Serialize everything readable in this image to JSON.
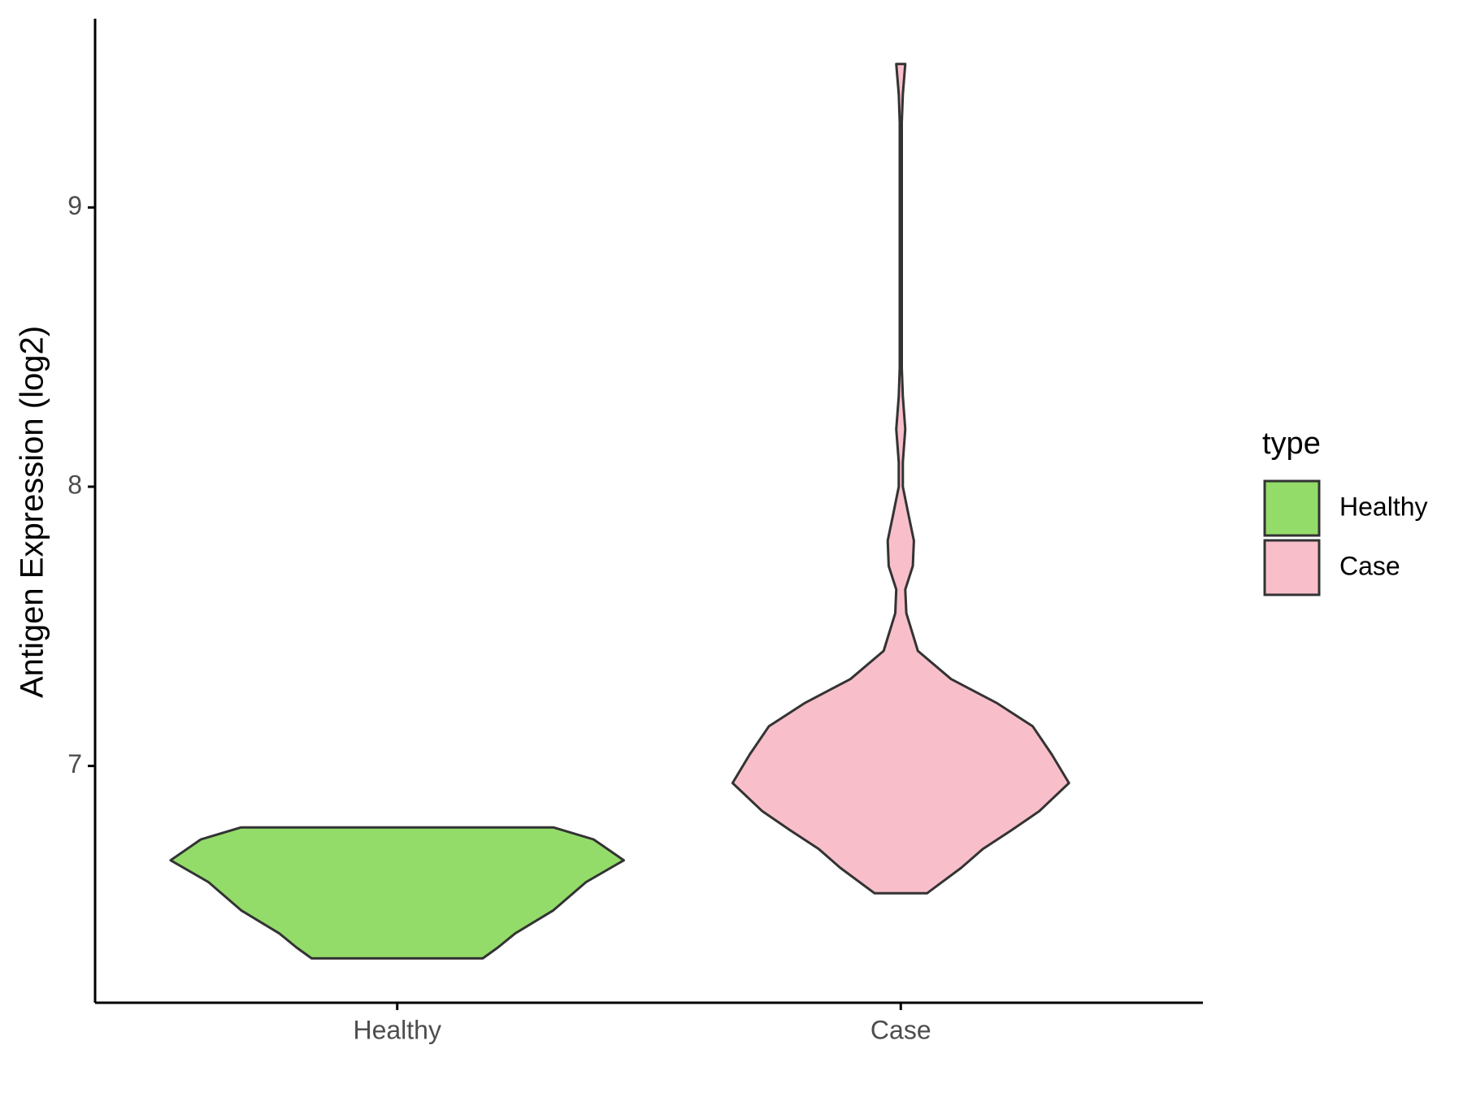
{
  "chart_data": {
    "type": "violin",
    "y_label": "Antigen Expression (log2)",
    "categories": [
      "Healthy",
      "Case"
    ],
    "legend_title": "type",
    "series": [
      {
        "name": "Healthy",
        "color": "#93dc6a",
        "y": [
          6.311,
          6.35,
          6.4,
          6.483,
          6.584,
          6.662,
          6.737,
          6.78
        ],
        "width": [
          0.17,
          0.2,
          0.234,
          0.31,
          0.375,
          0.45,
          0.39,
          0.31
        ]
      },
      {
        "name": "Case",
        "color": "#f8bfca",
        "y": [
          6.544,
          6.635,
          6.703,
          6.77,
          6.838,
          6.939,
          7.041,
          7.142,
          7.226,
          7.311,
          7.412,
          7.547,
          7.632,
          7.716,
          7.807,
          7.902,
          8.0,
          8.088,
          8.206,
          8.324,
          8.426,
          8.73,
          9.304,
          9.405,
          9.514
        ],
        "width": [
          0.052,
          0.12,
          0.163,
          0.22,
          0.275,
          0.334,
          0.3,
          0.262,
          0.19,
          0.1,
          0.034,
          0.011,
          0.009,
          0.024,
          0.026,
          0.015,
          0.004,
          0.004,
          0.009,
          0.004,
          0.002,
          0.002,
          0.002,
          0.004,
          0.009
        ]
      }
    ],
    "ylim": [
      6.152,
      9.676
    ],
    "yticks": [
      7,
      8,
      9
    ]
  }
}
